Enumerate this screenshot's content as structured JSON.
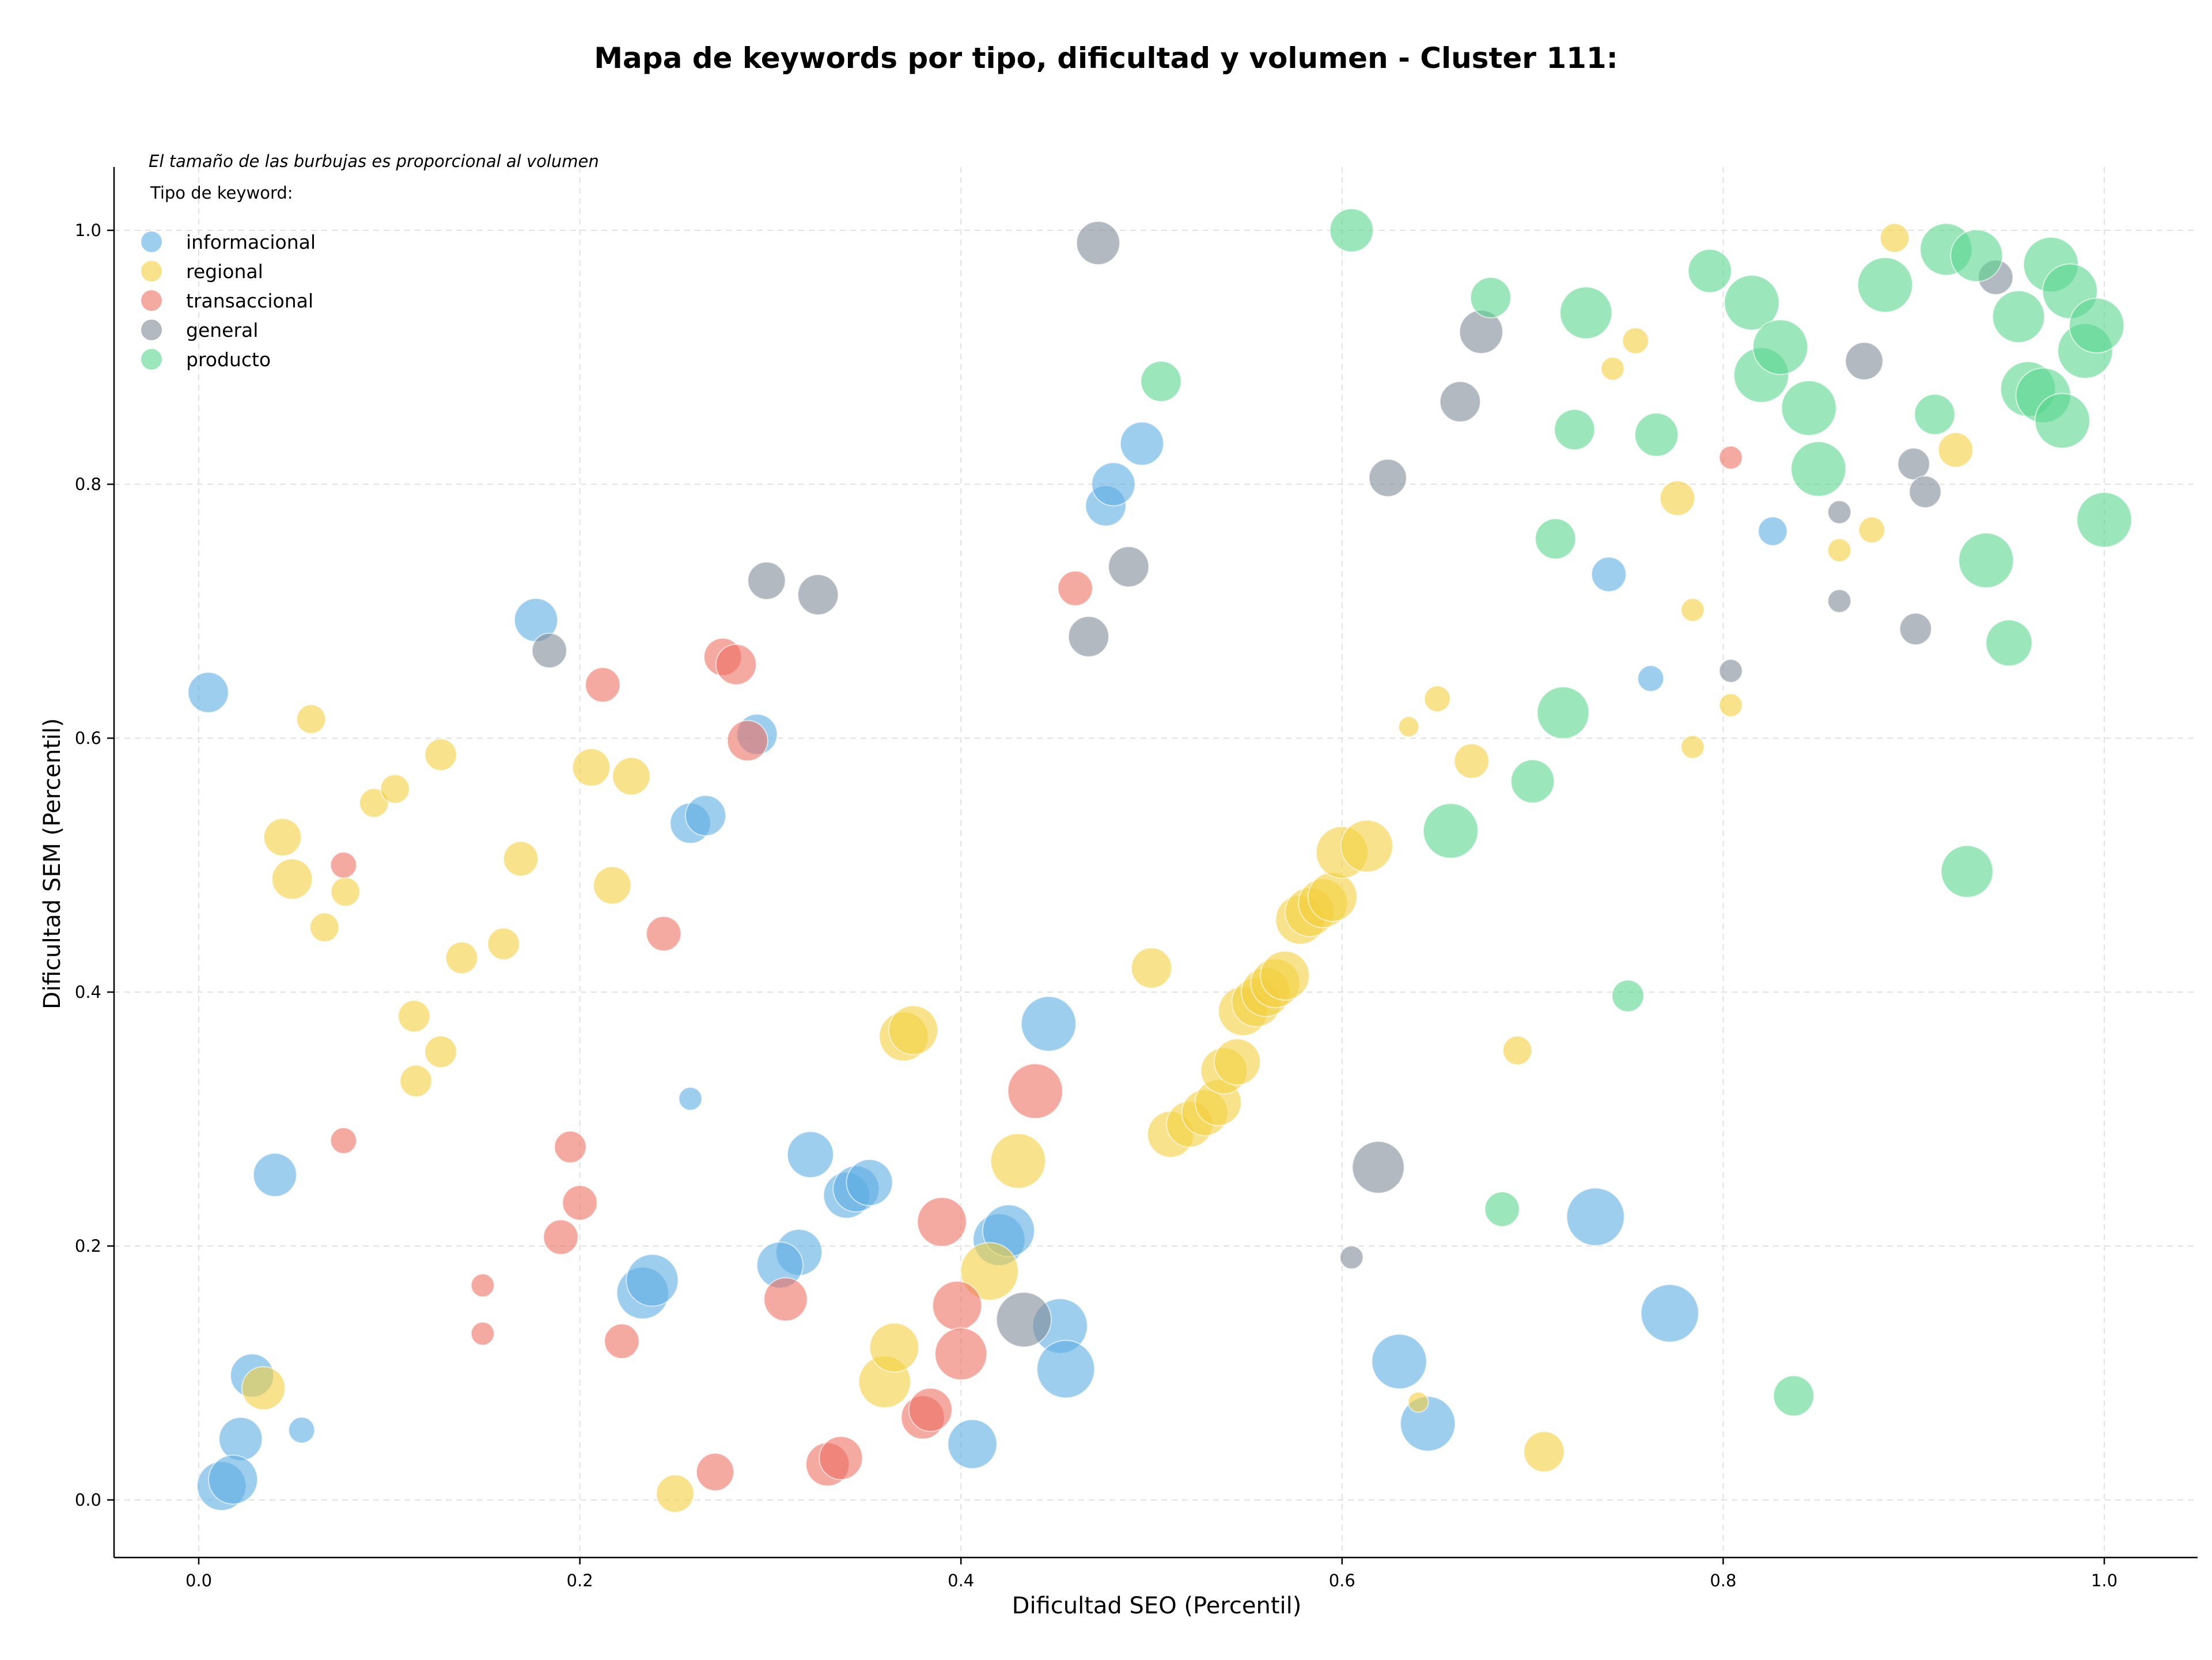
{
  "chart_data": {
    "type": "scatter",
    "title": "Mapa de keywords por tipo, dificultad y volumen - Cluster 111:",
    "xlabel": "Dificultad SEO (Percentil)",
    "ylabel": "Dificultad SEM (Percentil)",
    "xlim": [
      -0.045,
      1.05
    ],
    "ylim": [
      -0.045,
      1.05
    ],
    "x_ticks": [
      "0.0",
      "0.2",
      "0.4",
      "0.6",
      "0.8",
      "1.0"
    ],
    "y_ticks": [
      "0.0",
      "0.2",
      "0.4",
      "0.6",
      "0.8",
      "1.0"
    ],
    "grid": true,
    "size_note": "El tamaño de las burbujas es proporcional al volumen",
    "legend_title": "Tipo de keyword:",
    "legend_position": "top-left",
    "series": [
      {
        "name": "informacional",
        "color": "#5DADE2",
        "points": [
          [
            0.005,
            0.636,
            14
          ],
          [
            0.177,
            0.693,
            15
          ],
          [
            0.04,
            0.256,
            15
          ],
          [
            0.028,
            0.098,
            15
          ],
          [
            0.022,
            0.048,
            15
          ],
          [
            0.012,
            0.011,
            17
          ],
          [
            0.018,
            0.016,
            17
          ],
          [
            0.054,
            0.055,
            9
          ],
          [
            0.258,
            0.316,
            8
          ],
          [
            0.258,
            0.533,
            14
          ],
          [
            0.266,
            0.539,
            14
          ],
          [
            0.293,
            0.603,
            14
          ],
          [
            0.321,
            0.272,
            16
          ],
          [
            0.315,
            0.195,
            16
          ],
          [
            0.305,
            0.185,
            16
          ],
          [
            0.233,
            0.163,
            18
          ],
          [
            0.238,
            0.173,
            18
          ],
          [
            0.34,
            0.24,
            16
          ],
          [
            0.345,
            0.245,
            16
          ],
          [
            0.352,
            0.25,
            16
          ],
          [
            0.42,
            0.205,
            18
          ],
          [
            0.425,
            0.212,
            18
          ],
          [
            0.406,
            0.044,
            17
          ],
          [
            0.446,
            0.375,
            19
          ],
          [
            0.452,
            0.137,
            19
          ],
          [
            0.455,
            0.103,
            20
          ],
          [
            0.476,
            0.783,
            14
          ],
          [
            0.48,
            0.8,
            15
          ],
          [
            0.495,
            0.832,
            15
          ],
          [
            0.63,
            0.109,
            19
          ],
          [
            0.645,
            0.06,
            19
          ],
          [
            0.733,
            0.223,
            20
          ],
          [
            0.772,
            0.147,
            20
          ],
          [
            0.74,
            0.729,
            12
          ],
          [
            0.762,
            0.647,
            9
          ],
          [
            0.826,
            0.763,
            10
          ]
        ]
      },
      {
        "name": "regional",
        "color": "#F4D03F",
        "points": [
          [
            0.059,
            0.615,
            10
          ],
          [
            0.044,
            0.522,
            13
          ],
          [
            0.049,
            0.489,
            14
          ],
          [
            0.066,
            0.451,
            10
          ],
          [
            0.077,
            0.479,
            10
          ],
          [
            0.092,
            0.549,
            10
          ],
          [
            0.103,
            0.56,
            10
          ],
          [
            0.127,
            0.587,
            11
          ],
          [
            0.113,
            0.381,
            11
          ],
          [
            0.127,
            0.353,
            11
          ],
          [
            0.114,
            0.33,
            11
          ],
          [
            0.138,
            0.427,
            11
          ],
          [
            0.16,
            0.438,
            11
          ],
          [
            0.169,
            0.505,
            12
          ],
          [
            0.206,
            0.577,
            13
          ],
          [
            0.227,
            0.57,
            13
          ],
          [
            0.217,
            0.484,
            13
          ],
          [
            0.034,
            0.088,
            15
          ],
          [
            0.25,
            0.005,
            13
          ],
          [
            0.37,
            0.365,
            17
          ],
          [
            0.375,
            0.37,
            17
          ],
          [
            0.43,
            0.267,
            19
          ],
          [
            0.415,
            0.18,
            20
          ],
          [
            0.36,
            0.093,
            18
          ],
          [
            0.365,
            0.12,
            17
          ],
          [
            0.5,
            0.419,
            14
          ],
          [
            0.51,
            0.288,
            16
          ],
          [
            0.52,
            0.296,
            16
          ],
          [
            0.528,
            0.305,
            16
          ],
          [
            0.535,
            0.313,
            16
          ],
          [
            0.538,
            0.338,
            16
          ],
          [
            0.545,
            0.345,
            16
          ],
          [
            0.548,
            0.385,
            17
          ],
          [
            0.555,
            0.392,
            17
          ],
          [
            0.56,
            0.4,
            17
          ],
          [
            0.565,
            0.407,
            17
          ],
          [
            0.57,
            0.413,
            17
          ],
          [
            0.578,
            0.457,
            17
          ],
          [
            0.583,
            0.463,
            17
          ],
          [
            0.59,
            0.47,
            17
          ],
          [
            0.595,
            0.475,
            17
          ],
          [
            0.6,
            0.51,
            18
          ],
          [
            0.613,
            0.515,
            18
          ],
          [
            0.635,
            0.609,
            7
          ],
          [
            0.65,
            0.631,
            9
          ],
          [
            0.668,
            0.582,
            12
          ],
          [
            0.692,
            0.354,
            10
          ],
          [
            0.706,
            0.038,
            14
          ],
          [
            0.742,
            0.891,
            8
          ],
          [
            0.754,
            0.913,
            9
          ],
          [
            0.776,
            0.789,
            12
          ],
          [
            0.784,
            0.701,
            8
          ],
          [
            0.784,
            0.593,
            8
          ],
          [
            0.804,
            0.626,
            8
          ],
          [
            0.861,
            0.748,
            8
          ],
          [
            0.878,
            0.764,
            9
          ],
          [
            0.89,
            0.994,
            10
          ],
          [
            0.922,
            0.827,
            12
          ],
          [
            0.64,
            0.077,
            7
          ]
        ]
      },
      {
        "name": "transaccional",
        "color": "#EC7063",
        "points": [
          [
            0.076,
            0.5,
            9
          ],
          [
            0.076,
            0.283,
            9
          ],
          [
            0.149,
            0.169,
            8
          ],
          [
            0.149,
            0.131,
            8
          ],
          [
            0.195,
            0.278,
            11
          ],
          [
            0.2,
            0.234,
            12
          ],
          [
            0.19,
            0.207,
            12
          ],
          [
            0.212,
            0.642,
            12
          ],
          [
            0.222,
            0.125,
            12
          ],
          [
            0.244,
            0.446,
            12
          ],
          [
            0.271,
            0.022,
            13
          ],
          [
            0.275,
            0.664,
            13
          ],
          [
            0.282,
            0.658,
            14
          ],
          [
            0.288,
            0.598,
            14
          ],
          [
            0.308,
            0.158,
            15
          ],
          [
            0.33,
            0.028,
            15
          ],
          [
            0.337,
            0.033,
            15
          ],
          [
            0.38,
            0.065,
            15
          ],
          [
            0.384,
            0.071,
            15
          ],
          [
            0.39,
            0.219,
            17
          ],
          [
            0.398,
            0.153,
            17
          ],
          [
            0.4,
            0.115,
            18
          ],
          [
            0.439,
            0.322,
            19
          ],
          [
            0.46,
            0.718,
            12
          ],
          [
            0.804,
            0.821,
            8
          ]
        ]
      },
      {
        "name": "general",
        "color": "#808B96",
        "points": [
          [
            0.184,
            0.669,
            12
          ],
          [
            0.298,
            0.724,
            13
          ],
          [
            0.325,
            0.713,
            14
          ],
          [
            0.433,
            0.142,
            19
          ],
          [
            0.467,
            0.68,
            14
          ],
          [
            0.472,
            0.99,
            15
          ],
          [
            0.488,
            0.735,
            14
          ],
          [
            0.605,
            0.191,
            8
          ],
          [
            0.619,
            0.262,
            18
          ],
          [
            0.624,
            0.805,
            13
          ],
          [
            0.662,
            0.865,
            14
          ],
          [
            0.673,
            0.92,
            15
          ],
          [
            0.804,
            0.653,
            8
          ],
          [
            0.861,
            0.778,
            8
          ],
          [
            0.861,
            0.708,
            8
          ],
          [
            0.874,
            0.897,
            13
          ],
          [
            0.9,
            0.816,
            11
          ],
          [
            0.901,
            0.686,
            11
          ],
          [
            0.906,
            0.794,
            11
          ],
          [
            0.943,
            0.963,
            12
          ]
        ]
      },
      {
        "name": "producto",
        "color": "#58D68D",
        "points": [
          [
            0.505,
            0.881,
            14
          ],
          [
            0.605,
            1.0,
            15
          ],
          [
            0.657,
            0.527,
            19
          ],
          [
            0.678,
            0.947,
            14
          ],
          [
            0.684,
            0.229,
            12
          ],
          [
            0.7,
            0.566,
            15
          ],
          [
            0.712,
            0.757,
            14
          ],
          [
            0.716,
            0.62,
            18
          ],
          [
            0.722,
            0.843,
            14
          ],
          [
            0.728,
            0.935,
            18
          ],
          [
            0.75,
            0.397,
            11
          ],
          [
            0.765,
            0.839,
            15
          ],
          [
            0.793,
            0.968,
            15
          ],
          [
            0.815,
            0.943,
            19
          ],
          [
            0.82,
            0.886,
            19
          ],
          [
            0.83,
            0.908,
            19
          ],
          [
            0.837,
            0.082,
            14
          ],
          [
            0.845,
            0.86,
            19
          ],
          [
            0.85,
            0.812,
            19
          ],
          [
            0.885,
            0.957,
            19
          ],
          [
            0.911,
            0.855,
            14
          ],
          [
            0.917,
            0.985,
            18
          ],
          [
            0.928,
            0.495,
            18
          ],
          [
            0.933,
            0.98,
            18
          ],
          [
            0.938,
            0.74,
            19
          ],
          [
            0.95,
            0.675,
            16
          ],
          [
            0.955,
            0.932,
            18
          ],
          [
            0.96,
            0.875,
            19
          ],
          [
            0.968,
            0.87,
            19
          ],
          [
            0.972,
            0.973,
            19
          ],
          [
            0.978,
            0.85,
            19
          ],
          [
            0.982,
            0.952,
            19
          ],
          [
            0.99,
            0.905,
            19
          ],
          [
            0.996,
            0.925,
            19
          ],
          [
            1.0,
            0.772,
            19
          ]
        ]
      }
    ]
  }
}
